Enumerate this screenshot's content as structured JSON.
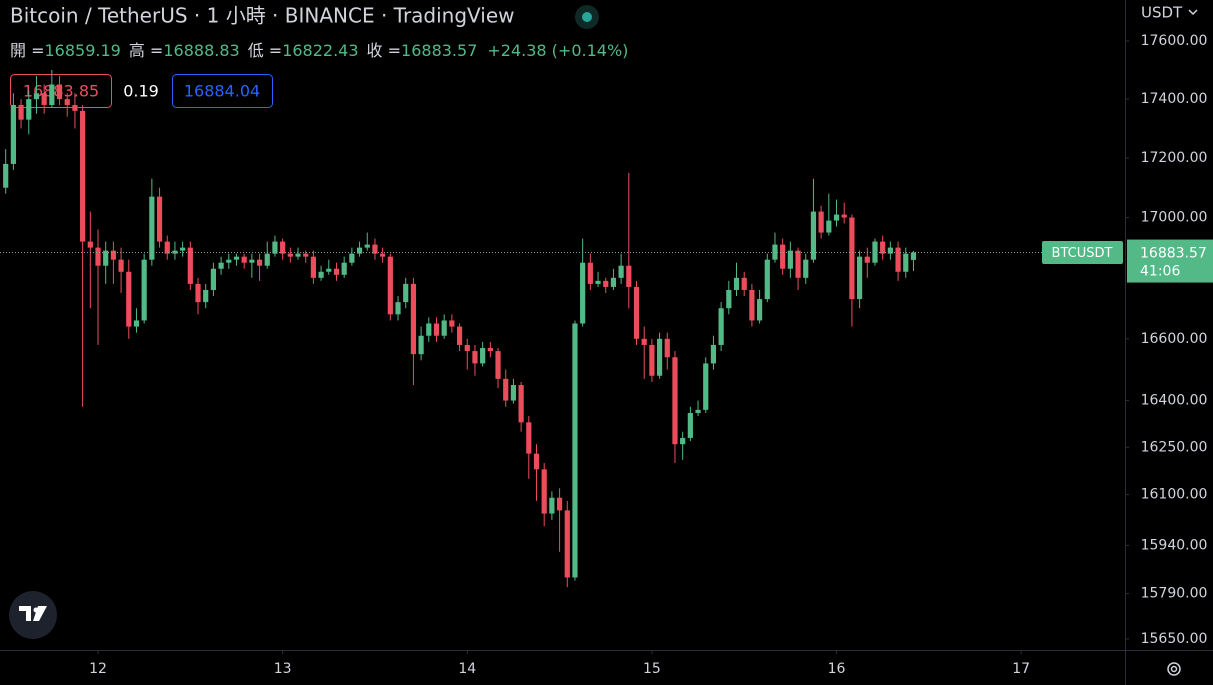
{
  "chart_data": {
    "type": "candlestick",
    "title": "Bitcoin / TetherUS · 1 小時 · BINANCE · TradingView",
    "ohlc_labels": [
      "開 =",
      "高 =",
      "低 =",
      "收 ="
    ],
    "change": "+24.38 (+0.14%)",
    "bid": 16883.85,
    "spread": 0.19,
    "ask": 16884.04,
    "currency": "USDT",
    "symbol": "BTCUSDT",
    "countdown": "41:06",
    "up_color": "#53b987",
    "down_color": "#eb4d5c",
    "log_scale": true,
    "ylim": [
      15616,
      17742
    ],
    "yticks": [
      {
        "value": 17600,
        "label": "17600.00"
      },
      {
        "value": 17400,
        "label": "17400.00"
      },
      {
        "value": 17200,
        "label": "17200.00"
      },
      {
        "value": 17000,
        "label": "17000.00"
      },
      {
        "value": 16600,
        "label": "16600.00"
      },
      {
        "value": 16400,
        "label": "16400.00"
      },
      {
        "value": 16250,
        "label": "16250.00"
      },
      {
        "value": 16100,
        "label": "16100.00"
      },
      {
        "value": 15940,
        "label": "15940.00"
      },
      {
        "value": 15790,
        "label": "15790.00"
      },
      {
        "value": 15650,
        "label": "15650.00"
      }
    ],
    "xlim": [
      -0.74,
      145.5
    ],
    "xticks": [
      {
        "value": 12,
        "label": "12"
      },
      {
        "value": 36,
        "label": "13"
      },
      {
        "value": 60,
        "label": "14"
      },
      {
        "value": 84,
        "label": "15"
      },
      {
        "value": 108,
        "label": "16"
      },
      {
        "value": 132,
        "label": "17"
      }
    ],
    "ohlc": [
      [
        17100,
        17230,
        17080,
        17180
      ],
      [
        17180,
        17420,
        17160,
        17380
      ],
      [
        17380,
        17400,
        17300,
        17330
      ],
      [
        17330,
        17430,
        17280,
        17400
      ],
      [
        17400,
        17480,
        17350,
        17420
      ],
      [
        17420,
        17450,
        17350,
        17380
      ],
      [
        17380,
        17500,
        17370,
        17450
      ],
      [
        17450,
        17480,
        17380,
        17400
      ],
      [
        17400,
        17420,
        17340,
        17380
      ],
      [
        17380,
        17420,
        17300,
        17360
      ],
      [
        17360,
        17380,
        16380,
        16920
      ],
      [
        16920,
        17020,
        16700,
        16900
      ],
      [
        16900,
        16960,
        16580,
        16840
      ],
      [
        16840,
        16920,
        16780,
        16890
      ],
      [
        16890,
        16920,
        16780,
        16860
      ],
      [
        16860,
        16900,
        16750,
        16820
      ],
      [
        16820,
        16860,
        16600,
        16640
      ],
      [
        16640,
        16700,
        16620,
        16660
      ],
      [
        16660,
        16880,
        16650,
        16860
      ],
      [
        16860,
        17130,
        16840,
        17070
      ],
      [
        17070,
        17100,
        16900,
        16920
      ],
      [
        16920,
        16940,
        16860,
        16880
      ],
      [
        16880,
        16920,
        16860,
        16890
      ],
      [
        16890,
        16920,
        16870,
        16900
      ],
      [
        16900,
        16920,
        16760,
        16780
      ],
      [
        16780,
        16800,
        16680,
        16720
      ],
      [
        16720,
        16780,
        16700,
        16760
      ],
      [
        16760,
        16850,
        16740,
        16830
      ],
      [
        16830,
        16870,
        16810,
        16850
      ],
      [
        16850,
        16880,
        16830,
        16860
      ],
      [
        16860,
        16880,
        16840,
        16870
      ],
      [
        16870,
        16880,
        16830,
        16850
      ],
      [
        16850,
        16880,
        16800,
        16860
      ],
      [
        16860,
        16880,
        16790,
        16840
      ],
      [
        16840,
        16920,
        16830,
        16880
      ],
      [
        16880,
        16940,
        16870,
        16920
      ],
      [
        16920,
        16930,
        16860,
        16880
      ],
      [
        16880,
        16900,
        16850,
        16870
      ],
      [
        16870,
        16900,
        16860,
        16880
      ],
      [
        16880,
        16890,
        16850,
        16870
      ],
      [
        16870,
        16890,
        16780,
        16800
      ],
      [
        16800,
        16840,
        16790,
        16820
      ],
      [
        16820,
        16860,
        16810,
        16830
      ],
      [
        16830,
        16850,
        16790,
        16810
      ],
      [
        16810,
        16870,
        16800,
        16850
      ],
      [
        16850,
        16900,
        16840,
        16880
      ],
      [
        16880,
        16920,
        16870,
        16900
      ],
      [
        16900,
        16950,
        16890,
        16910
      ],
      [
        16910,
        16930,
        16860,
        16880
      ],
      [
        16880,
        16900,
        16850,
        16870
      ],
      [
        16870,
        16880,
        16660,
        16680
      ],
      [
        16680,
        16740,
        16660,
        16720
      ],
      [
        16720,
        16800,
        16700,
        16780
      ],
      [
        16780,
        16800,
        16450,
        16550
      ],
      [
        16550,
        16640,
        16530,
        16610
      ],
      [
        16610,
        16670,
        16590,
        16650
      ],
      [
        16650,
        16670,
        16590,
        16610
      ],
      [
        16610,
        16680,
        16600,
        16660
      ],
      [
        16660,
        16680,
        16620,
        16640
      ],
      [
        16640,
        16650,
        16560,
        16580
      ],
      [
        16580,
        16600,
        16500,
        16560
      ],
      [
        16560,
        16580,
        16480,
        16520
      ],
      [
        16520,
        16590,
        16510,
        16570
      ],
      [
        16570,
        16590,
        16540,
        16560
      ],
      [
        16560,
        16570,
        16440,
        16470
      ],
      [
        16470,
        16500,
        16380,
        16400
      ],
      [
        16400,
        16470,
        16390,
        16450
      ],
      [
        16450,
        16460,
        16300,
        16330
      ],
      [
        16330,
        16350,
        16150,
        16230
      ],
      [
        16230,
        16260,
        16080,
        16180
      ],
      [
        16180,
        16200,
        16000,
        16040
      ],
      [
        16040,
        16110,
        16020,
        16090
      ],
      [
        16090,
        16120,
        15920,
        16050
      ],
      [
        16050,
        16080,
        15810,
        15840
      ],
      [
        15840,
        16660,
        15830,
        16650
      ],
      [
        16650,
        16930,
        16640,
        16850
      ],
      [
        16850,
        16880,
        16760,
        16780
      ],
      [
        16780,
        16820,
        16770,
        16790
      ],
      [
        16790,
        16800,
        16750,
        16770
      ],
      [
        16770,
        16830,
        16760,
        16800
      ],
      [
        16800,
        16880,
        16780,
        16840
      ],
      [
        16840,
        17150,
        16700,
        16770
      ],
      [
        16770,
        16790,
        16580,
        16600
      ],
      [
        16600,
        16640,
        16470,
        16580
      ],
      [
        16580,
        16600,
        16460,
        16480
      ],
      [
        16480,
        16620,
        16470,
        16600
      ],
      [
        16600,
        16620,
        16500,
        16540
      ],
      [
        16540,
        16560,
        16200,
        16260
      ],
      [
        16260,
        16300,
        16210,
        16280
      ],
      [
        16280,
        16380,
        16270,
        16360
      ],
      [
        16360,
        16400,
        16350,
        16370
      ],
      [
        16370,
        16540,
        16360,
        16520
      ],
      [
        16520,
        16610,
        16500,
        16580
      ],
      [
        16580,
        16720,
        16560,
        16700
      ],
      [
        16700,
        16790,
        16680,
        16760
      ],
      [
        16760,
        16850,
        16740,
        16800
      ],
      [
        16800,
        16820,
        16740,
        16760
      ],
      [
        16760,
        16780,
        16640,
        16660
      ],
      [
        16660,
        16760,
        16650,
        16730
      ],
      [
        16730,
        16880,
        16720,
        16860
      ],
      [
        16860,
        16950,
        16850,
        16910
      ],
      [
        16910,
        16930,
        16810,
        16830
      ],
      [
        16830,
        16920,
        16800,
        16890
      ],
      [
        16890,
        16900,
        16760,
        16800
      ],
      [
        16800,
        16880,
        16780,
        16860
      ],
      [
        16860,
        17130,
        16850,
        17020
      ],
      [
        17020,
        17040,
        16930,
        16950
      ],
      [
        16950,
        17080,
        16940,
        16990
      ],
      [
        16990,
        17060,
        16970,
        17010
      ],
      [
        17010,
        17050,
        16980,
        17000
      ],
      [
        17000,
        17010,
        16640,
        16730
      ],
      [
        16730,
        16890,
        16700,
        16870
      ],
      [
        16870,
        16900,
        16800,
        16850
      ],
      [
        16850,
        16930,
        16840,
        16920
      ],
      [
        16920,
        16940,
        16860,
        16880
      ],
      [
        16880,
        16920,
        16860,
        16900
      ],
      [
        16900,
        16920,
        16790,
        16820
      ],
      [
        16820,
        16900,
        16800,
        16880
      ],
      [
        16859.19,
        16888.83,
        16822.43,
        16883.57
      ]
    ]
  }
}
